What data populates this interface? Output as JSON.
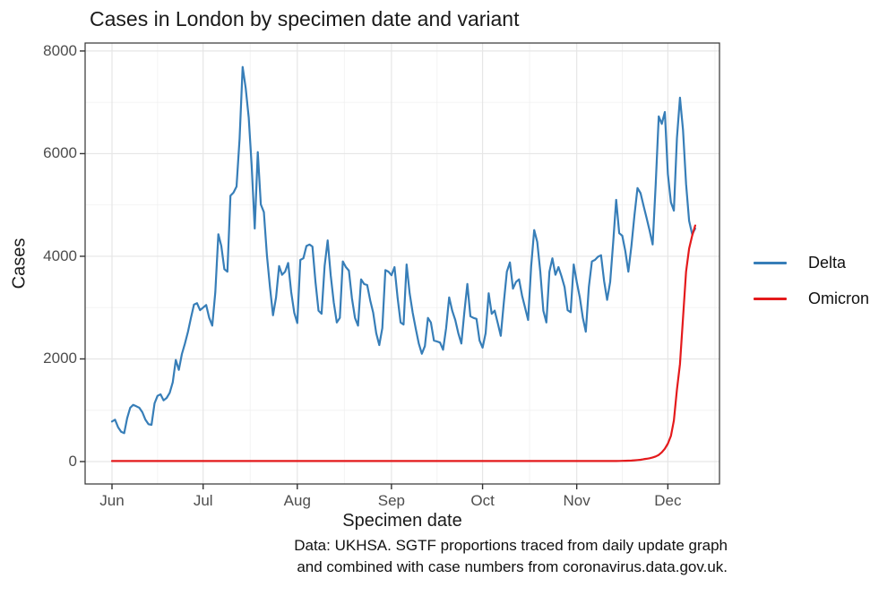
{
  "title": "Cases in London by specimen date and variant",
  "axes": {
    "x_label": "Specimen date",
    "y_label": "Cases"
  },
  "legend": {
    "position": "right",
    "items": [
      {
        "label": "Delta",
        "color": "#377EB8"
      },
      {
        "label": "Omicron",
        "color": "#E41A1C"
      }
    ]
  },
  "caption": {
    "line1": "Data: UKHSA. SGTF proportions traced from daily update graph",
    "line2": "and combined with case numbers from coronavirus.data.gov.uk."
  },
  "colors": {
    "background": "#FFFFFF",
    "panel_border": "#333333",
    "grid_major": "#E6E6E6",
    "grid_minor": "#F2F2F2",
    "tick_mark": "#333333",
    "tick_text": "#4D4D4D"
  },
  "chart_data": {
    "type": "line",
    "title": "Cases in London by specimen date and variant",
    "xlabel": "Specimen date",
    "ylabel": "Cases",
    "x_start": "2021-06-01",
    "x_end": "2021-12-10",
    "x_tick_labels": [
      "Jun",
      "Jul",
      "Aug",
      "Sep",
      "Oct",
      "Nov",
      "Dec"
    ],
    "x_tick_day_offsets": [
      0,
      30,
      61,
      92,
      122,
      153,
      183
    ],
    "x_next_month_day_offset": 214,
    "y_ticks": [
      0,
      2000,
      4000,
      6000,
      8000
    ],
    "y_minor_ticks": [
      1000,
      3000,
      5000,
      7000
    ],
    "ylim": [
      0,
      8000
    ],
    "grid": true,
    "legend_position": "right",
    "series": [
      {
        "name": "Delta",
        "color": "#377EB8",
        "values": [
          780,
          816,
          669,
          582,
          554,
          844,
          1048,
          1106,
          1077,
          1048,
          961,
          816,
          729,
          716,
          1135,
          1280,
          1310,
          1193,
          1240,
          1340,
          1543,
          1980,
          1787,
          2096,
          2300,
          2530,
          2800,
          3057,
          3086,
          2950,
          3000,
          3050,
          2800,
          2650,
          3300,
          4430,
          4200,
          3750,
          3700,
          5180,
          5240,
          5360,
          6290,
          7690,
          7280,
          6700,
          5760,
          4540,
          6030,
          5010,
          4860,
          4020,
          3400,
          2850,
          3200,
          3810,
          3640,
          3700,
          3870,
          3300,
          2900,
          2700,
          3930,
          3960,
          4200,
          4230,
          4190,
          3500,
          2940,
          2880,
          3810,
          4310,
          3630,
          3100,
          2710,
          2800,
          3900,
          3790,
          3720,
          3180,
          2800,
          2650,
          3550,
          3460,
          3440,
          3140,
          2900,
          2500,
          2270,
          2600,
          3730,
          3700,
          3630,
          3790,
          3200,
          2710,
          2670,
          3840,
          3280,
          2900,
          2590,
          2300,
          2100,
          2250,
          2800,
          2710,
          2360,
          2340,
          2320,
          2180,
          2600,
          3200,
          2940,
          2760,
          2500,
          2300,
          2900,
          3460,
          2830,
          2800,
          2780,
          2360,
          2220,
          2500,
          3280,
          2880,
          2940,
          2700,
          2450,
          3100,
          3700,
          3880,
          3370,
          3500,
          3550,
          3230,
          3000,
          2760,
          3800,
          4510,
          4280,
          3700,
          2940,
          2710,
          3700,
          3960,
          3640,
          3790,
          3610,
          3400,
          2950,
          2910,
          3840,
          3500,
          3200,
          2800,
          2530,
          3400,
          3900,
          3930,
          3990,
          4020,
          3520,
          3150,
          3500,
          4280,
          5100,
          4450,
          4400,
          4100,
          3700,
          4200,
          4800,
          5330,
          5230,
          4980,
          4750,
          4500,
          4230,
          5400,
          6725,
          6580,
          6810,
          5600,
          5050,
          4890,
          6300,
          7090,
          6460,
          5410,
          4690,
          4430,
          4540
        ]
      },
      {
        "name": "Omicron",
        "color": "#E41A1C",
        "values": [
          10,
          10,
          10,
          10,
          10,
          10,
          10,
          10,
          10,
          10,
          10,
          10,
          10,
          10,
          10,
          10,
          10,
          10,
          10,
          10,
          10,
          10,
          10,
          10,
          10,
          10,
          10,
          10,
          10,
          10,
          10,
          10,
          10,
          10,
          10,
          10,
          10,
          10,
          10,
          10,
          10,
          10,
          10,
          10,
          10,
          10,
          10,
          10,
          10,
          10,
          10,
          10,
          10,
          10,
          10,
          10,
          10,
          10,
          10,
          10,
          10,
          10,
          10,
          10,
          10,
          10,
          10,
          10,
          10,
          10,
          10,
          10,
          10,
          10,
          10,
          10,
          10,
          10,
          10,
          10,
          10,
          10,
          10,
          10,
          10,
          10,
          10,
          10,
          10,
          10,
          10,
          10,
          10,
          10,
          10,
          10,
          10,
          10,
          10,
          10,
          10,
          10,
          10,
          10,
          10,
          10,
          10,
          10,
          10,
          10,
          10,
          10,
          10,
          10,
          10,
          10,
          10,
          10,
          10,
          10,
          10,
          10,
          10,
          10,
          10,
          10,
          10,
          10,
          10,
          10,
          10,
          10,
          10,
          10,
          10,
          10,
          10,
          10,
          10,
          10,
          10,
          10,
          10,
          10,
          10,
          10,
          10,
          10,
          10,
          10,
          10,
          10,
          10,
          10,
          10,
          10,
          10,
          10,
          10,
          10,
          10,
          10,
          10,
          10,
          10,
          10,
          10,
          12,
          14,
          16,
          18,
          20,
          25,
          30,
          35,
          45,
          55,
          65,
          80,
          100,
          130,
          180,
          250,
          350,
          500,
          800,
          1400,
          1900,
          2800,
          3700,
          4150,
          4400,
          4600
        ]
      }
    ]
  }
}
